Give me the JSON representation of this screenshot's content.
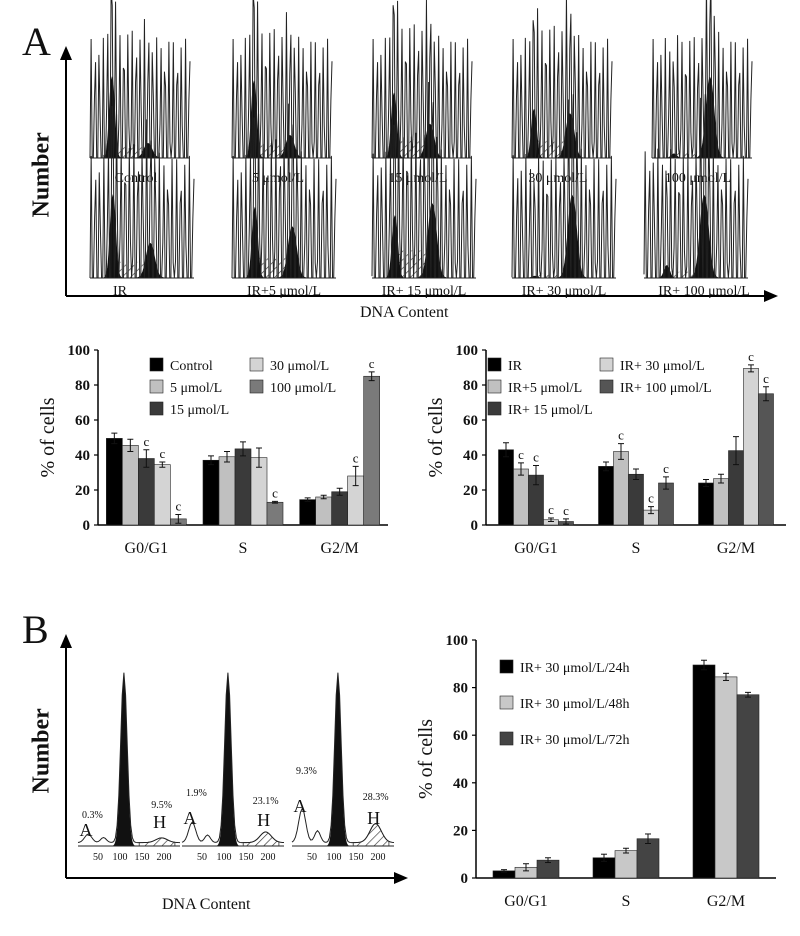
{
  "panel_a_label": "A",
  "panel_b_label": "B",
  "flow_ylabel": "Number",
  "flow_xlabel": "DNA  Content",
  "histograms_row1": [
    "Control",
    "5 μmol/L",
    "15 μmol/L",
    "30 μmol/L",
    "100 μmol/L"
  ],
  "histograms_row2": [
    "IR",
    "IR+5 μmol/L",
    "IR+ 15 μmol/L",
    "IR+ 30 μmol/L",
    "IR+ 100 μmol/L"
  ],
  "b_histograms": [
    {
      "a_pct": "0.3%",
      "h_pct": "9.5%"
    },
    {
      "a_pct": "1.9%",
      "h_pct": "23.1%"
    },
    {
      "a_pct": "9.3%",
      "h_pct": "28.3%"
    }
  ],
  "b_hist_marker_a": "A",
  "b_hist_marker_h": "H",
  "b_hist_ticks": [
    "50",
    "100",
    "150",
    "200"
  ],
  "chart_data": [
    {
      "type": "bar",
      "categories": [
        "G0/G1",
        "S",
        "G2/M"
      ],
      "ylabel": "% of cells",
      "ylim": [
        0,
        100
      ],
      "yticks": [
        0,
        20,
        40,
        60,
        80,
        100
      ],
      "significance_marker": "c",
      "series": [
        {
          "name": "Control",
          "color": "#000000",
          "values": [
            49.5,
            37,
            14.5
          ],
          "errors": [
            3,
            2.5,
            1
          ],
          "sig": [
            false,
            false,
            false
          ]
        },
        {
          "name": "5 μmol/L",
          "color": "#c0c0c0",
          "values": [
            45.5,
            39,
            16
          ],
          "errors": [
            3.5,
            3,
            1
          ],
          "sig": [
            false,
            false,
            false
          ]
        },
        {
          "name": "15 μmol/L",
          "color": "#3a3a3a",
          "values": [
            38,
            43.5,
            19
          ],
          "errors": [
            5,
            4,
            2
          ],
          "sig": [
            true,
            false,
            false
          ]
        },
        {
          "name": "30 μmol/L",
          "color": "#d4d4d4",
          "values": [
            34.5,
            38.5,
            28
          ],
          "errors": [
            1.5,
            5.5,
            5.5
          ],
          "sig": [
            true,
            false,
            true
          ]
        },
        {
          "name": "100 μmol/L",
          "color": "#7a7a7a",
          "values": [
            3.5,
            13,
            85
          ],
          "errors": [
            2.5,
            0.5,
            2.5
          ],
          "sig": [
            true,
            true,
            true
          ]
        }
      ]
    },
    {
      "type": "bar",
      "categories": [
        "G0/G1",
        "S",
        "G2/M"
      ],
      "ylabel": "% of cells",
      "ylim": [
        0,
        100
      ],
      "yticks": [
        0,
        20,
        40,
        60,
        80,
        100
      ],
      "significance_marker": "c",
      "series": [
        {
          "name": "IR",
          "color": "#000000",
          "values": [
            43,
            33.5,
            24
          ],
          "errors": [
            4,
            2.5,
            2
          ],
          "sig": [
            false,
            false,
            false
          ]
        },
        {
          "name": "IR+5 μmol/L",
          "color": "#c0c0c0",
          "values": [
            32,
            42,
            26.5
          ],
          "errors": [
            3.5,
            4.5,
            2.5
          ],
          "sig": [
            true,
            true,
            false
          ]
        },
        {
          "name": "IR+ 15 μmol/L",
          "color": "#3a3a3a",
          "values": [
            28.5,
            29,
            42.5
          ],
          "errors": [
            5.5,
            3,
            8
          ],
          "sig": [
            true,
            false,
            false
          ]
        },
        {
          "name": "IR+ 30 μmol/L",
          "color": "#d4d4d4",
          "values": [
            3,
            8.5,
            89.5
          ],
          "errors": [
            1,
            2,
            2
          ],
          "sig": [
            true,
            true,
            true
          ]
        },
        {
          "name": "IR+ 100 μmol/L",
          "color": "#555555",
          "values": [
            2,
            24,
            75
          ],
          "errors": [
            1.5,
            3.5,
            4
          ],
          "sig": [
            true,
            true,
            true
          ]
        }
      ]
    },
    {
      "type": "bar",
      "categories": [
        "G0/G1",
        "S",
        "G2/M"
      ],
      "ylabel": "% of cells",
      "ylim": [
        0,
        100
      ],
      "yticks": [
        0,
        20,
        40,
        60,
        80,
        100
      ],
      "series": [
        {
          "name": "IR+ 30 μmol/L/24h",
          "color": "#000000",
          "values": [
            3,
            8.5,
            89.5
          ],
          "errors": [
            0.5,
            1.5,
            2
          ]
        },
        {
          "name": "IR+ 30 μmol/L/48h",
          "color": "#c8c8c8",
          "values": [
            4.5,
            11.5,
            84.5
          ],
          "errors": [
            1.5,
            1,
            1.5
          ]
        },
        {
          "name": "IR+ 30 μmol/L/72h",
          "color": "#444444",
          "values": [
            7.5,
            16.5,
            77
          ],
          "errors": [
            1,
            2,
            1
          ]
        }
      ]
    }
  ]
}
